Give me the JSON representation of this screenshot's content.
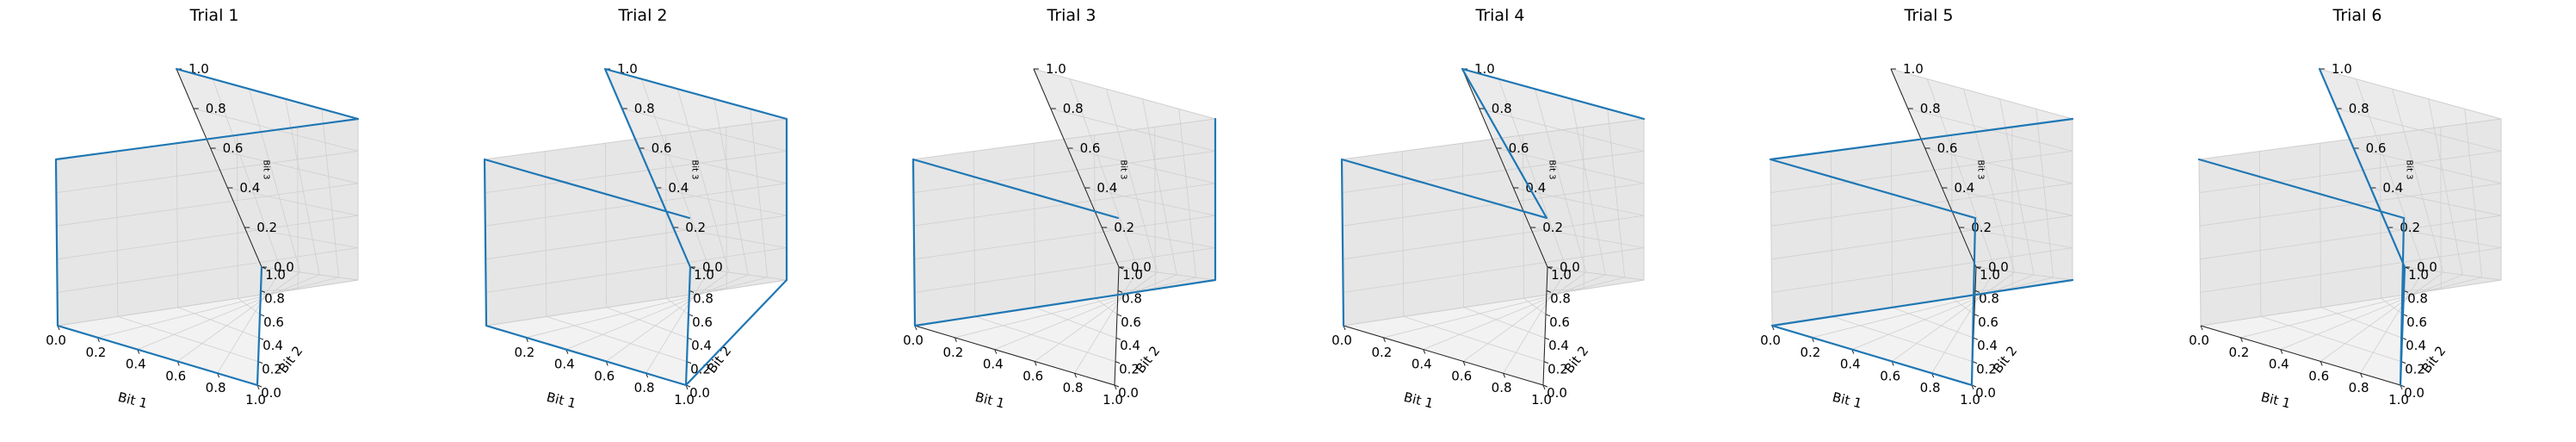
{
  "chart_data": [
    {
      "type": "line3d",
      "title": "Trial 1",
      "xlabel": "Bit 1",
      "ylabel": "Bit 2",
      "zlabel": "Bit 3",
      "xlim": [
        0,
        1
      ],
      "ylim": [
        0,
        1
      ],
      "zlim": [
        0,
        1
      ],
      "x_ticks": [
        "0.0",
        "0.2",
        "0.4",
        "0.6",
        "0.8",
        "1.0"
      ],
      "y_ticks": [
        "0.0",
        "0.2",
        "0.4",
        "0.6",
        "0.8",
        "1.0"
      ],
      "z_ticks": [
        "0.0",
        "0.2",
        "0.4",
        "0.6",
        "0.8",
        "1.0"
      ],
      "grid": true,
      "line_color": "#1f77b4",
      "path": [
        [
          1,
          1,
          1
        ],
        [
          0,
          1,
          1
        ],
        [
          0,
          0,
          1
        ],
        [
          0,
          0,
          0
        ],
        [
          1,
          0,
          0
        ],
        [
          1,
          1,
          0
        ]
      ]
    },
    {
      "type": "line3d",
      "title": "Trial 2",
      "xlabel": "Bit 1",
      "ylabel": "Bit 2",
      "zlabel": "Bit 3",
      "xlim": [
        0,
        1
      ],
      "ylim": [
        0,
        1
      ],
      "zlim": [
        0,
        1
      ],
      "x_ticks": [
        "0.2",
        "0.4",
        "0.6",
        "0.8",
        "1.0"
      ],
      "y_ticks": [
        "0.0",
        "0.2",
        "0.4",
        "0.6",
        "0.8",
        "1.0"
      ],
      "z_ticks": [
        "0.0",
        "0.2",
        "0.4",
        "0.6",
        "0.8",
        "1.0"
      ],
      "grid": true,
      "line_color": "#1f77b4",
      "path": [
        [
          1,
          0,
          1
        ],
        [
          0,
          0,
          1
        ],
        [
          0,
          0,
          0
        ],
        [
          1,
          0,
          0
        ],
        [
          1,
          1,
          0
        ],
        [
          1,
          1,
          1
        ],
        [
          0,
          1,
          1
        ],
        [
          0,
          1,
          0
        ],
        [
          1,
          0,
          0
        ]
      ]
    },
    {
      "type": "line3d",
      "title": "Trial 3",
      "xlabel": "Bit 1",
      "ylabel": "Bit 2",
      "zlabel": "Bit 3",
      "xlim": [
        0,
        1
      ],
      "ylim": [
        0,
        1
      ],
      "zlim": [
        0,
        1
      ],
      "x_ticks": [
        "0.0",
        "0.2",
        "0.4",
        "0.6",
        "0.8",
        "1.0"
      ],
      "y_ticks": [
        "0.0",
        "0.2",
        "0.4",
        "0.6",
        "0.8",
        "1.0"
      ],
      "z_ticks": [
        "0.0",
        "0.2",
        "0.4",
        "0.6",
        "0.8",
        "1.0"
      ],
      "grid": true,
      "line_color": "#1f77b4",
      "path": [
        [
          1,
          0,
          1
        ],
        [
          0,
          0,
          1
        ],
        [
          0,
          0,
          0
        ],
        [
          0,
          1,
          0
        ],
        [
          0,
          1,
          1
        ]
      ]
    },
    {
      "type": "line3d",
      "title": "Trial 4",
      "xlabel": "Bit 1",
      "ylabel": "Bit 2",
      "zlabel": "Bit 3",
      "xlim": [
        0,
        1
      ],
      "ylim": [
        0,
        1
      ],
      "zlim": [
        0,
        1
      ],
      "x_ticks": [
        "0.0",
        "0.2",
        "0.4",
        "0.6",
        "0.8",
        "1.0"
      ],
      "y_ticks": [
        "0.0",
        "0.2",
        "0.4",
        "0.6",
        "0.8",
        "1.0"
      ],
      "z_ticks": [
        "0.0",
        "0.2",
        "0.4",
        "0.6",
        "0.8",
        "1.0"
      ],
      "grid": true,
      "line_color": "#1f77b4",
      "path": [
        [
          0,
          0,
          0
        ],
        [
          0,
          0,
          1
        ],
        [
          1,
          0,
          1
        ],
        [
          1,
          1,
          1
        ],
        [
          0,
          1,
          1
        ]
      ]
    },
    {
      "type": "line3d",
      "title": "Trial 5",
      "xlabel": "Bit 1",
      "ylabel": "Bit 2",
      "zlabel": "Bit 3",
      "xlim": [
        0,
        1
      ],
      "ylim": [
        0,
        1
      ],
      "zlim": [
        0,
        1
      ],
      "x_ticks": [
        "0.0",
        "0.2",
        "0.4",
        "0.6",
        "0.8",
        "1.0"
      ],
      "y_ticks": [
        "0.0",
        "0.2",
        "0.4",
        "0.6",
        "0.8",
        "1.0"
      ],
      "z_ticks": [
        "0.0",
        "0.2",
        "0.4",
        "0.6",
        "0.8",
        "1.0"
      ],
      "grid": true,
      "line_color": "#1f77b4",
      "path": [
        [
          0,
          1,
          1
        ],
        [
          0,
          0,
          1
        ],
        [
          1,
          0,
          1
        ],
        [
          1,
          0,
          0
        ],
        [
          0,
          0,
          0
        ],
        [
          0,
          1,
          0
        ]
      ]
    },
    {
      "type": "line3d",
      "title": "Trial 6",
      "xlabel": "Bit 1",
      "ylabel": "Bit 2",
      "zlabel": "Bit 3",
      "xlim": [
        0,
        1
      ],
      "ylim": [
        0,
        1
      ],
      "zlim": [
        0,
        1
      ],
      "x_ticks": [
        "0.0",
        "0.2",
        "0.4",
        "0.6",
        "0.8",
        "1.0"
      ],
      "y_ticks": [
        "0.0",
        "0.2",
        "0.4",
        "0.6",
        "0.8",
        "1.0"
      ],
      "z_ticks": [
        "0.0",
        "0.2",
        "0.4",
        "0.6",
        "0.8",
        "1.0"
      ],
      "grid": true,
      "line_color": "#1f77b4",
      "path": [
        [
          0,
          0,
          1
        ],
        [
          1,
          0,
          1
        ],
        [
          1,
          0,
          0
        ],
        [
          1,
          1,
          0
        ],
        [
          1,
          1,
          1
        ]
      ]
    }
  ]
}
